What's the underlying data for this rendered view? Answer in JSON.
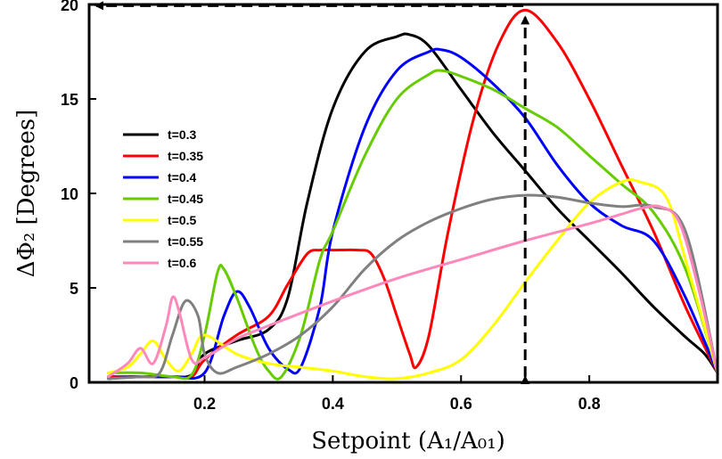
{
  "chart_data": {
    "type": "line",
    "xlabel": "Setpoint (A₁/A₀₁)",
    "ylabel": "ΔΦ₂ [Degrees]",
    "xlim": [
      0.02,
      1.0
    ],
    "ylim": [
      0,
      20
    ],
    "xticks": [
      "0.2",
      "0.4",
      "0.6",
      "0.8"
    ],
    "xtick_values": [
      0.2,
      0.4,
      0.6,
      0.8
    ],
    "yticks": [
      "0",
      "5",
      "10",
      "15",
      "20"
    ],
    "ytick_values": [
      0,
      5,
      10,
      15,
      20
    ],
    "grid": false,
    "legend_position": "left",
    "annotations": [
      {
        "type": "dashed-double-arrow",
        "orientation": "vertical",
        "x": 0.7,
        "from_y": 0,
        "to_y": 19.7
      },
      {
        "type": "dashed-arrow",
        "orientation": "horizontal",
        "y": 19.7,
        "from_x": 0.7,
        "to_x": 0.02
      }
    ],
    "series": [
      {
        "name": "t=0.3",
        "color": "#000000",
        "x": [
          0.05,
          0.1,
          0.15,
          0.18,
          0.2,
          0.25,
          0.3,
          0.33,
          0.36,
          0.4,
          0.45,
          0.5,
          0.52,
          0.55,
          0.6,
          0.65,
          0.7,
          0.75,
          0.8,
          0.85,
          0.9,
          0.95,
          0.98,
          1.0
        ],
        "y": [
          0.3,
          0.3,
          0.3,
          0.4,
          1.5,
          2.2,
          2.8,
          4.5,
          9.5,
          14.5,
          17.5,
          18.3,
          18.4,
          17.8,
          15.5,
          13.2,
          11.2,
          9.2,
          7.5,
          5.8,
          4.0,
          2.4,
          1.5,
          0.5
        ]
      },
      {
        "name": "t=0.35",
        "color": "#ff0000",
        "x": [
          0.05,
          0.1,
          0.15,
          0.18,
          0.2,
          0.25,
          0.3,
          0.33,
          0.36,
          0.38,
          0.4,
          0.44,
          0.46,
          0.48,
          0.5,
          0.52,
          0.53,
          0.55,
          0.58,
          0.62,
          0.66,
          0.7,
          0.75,
          0.8,
          0.85,
          0.9,
          0.95,
          1.0
        ],
        "y": [
          0.3,
          0.3,
          0.3,
          0.3,
          1.2,
          2.5,
          3.5,
          5.2,
          6.8,
          7.0,
          7.0,
          7.0,
          6.8,
          5.5,
          3.5,
          1.5,
          0.8,
          2.5,
          8.0,
          14.0,
          18.0,
          19.7,
          18.0,
          15.0,
          11.5,
          8.0,
          4.0,
          0.5
        ]
      },
      {
        "name": "t=0.4",
        "color": "#0000ff",
        "x": [
          0.05,
          0.1,
          0.15,
          0.2,
          0.23,
          0.25,
          0.27,
          0.3,
          0.33,
          0.35,
          0.38,
          0.4,
          0.45,
          0.5,
          0.55,
          0.57,
          0.6,
          0.65,
          0.7,
          0.75,
          0.8,
          0.85,
          0.9,
          0.95,
          1.0
        ],
        "y": [
          0.2,
          0.3,
          0.3,
          0.5,
          3.5,
          4.8,
          4.0,
          1.8,
          0.7,
          0.8,
          4.0,
          8.0,
          13.5,
          16.5,
          17.5,
          17.6,
          17.2,
          15.8,
          14.0,
          11.5,
          9.5,
          8.3,
          7.5,
          4.5,
          0.5
        ]
      },
      {
        "name": "t=0.45",
        "color": "#66cc00",
        "x": [
          0.05,
          0.1,
          0.15,
          0.18,
          0.2,
          0.22,
          0.23,
          0.25,
          0.28,
          0.3,
          0.32,
          0.35,
          0.38,
          0.4,
          0.45,
          0.5,
          0.55,
          0.57,
          0.6,
          0.65,
          0.7,
          0.75,
          0.8,
          0.85,
          0.9,
          0.95,
          1.0
        ],
        "y": [
          0.5,
          0.5,
          0.3,
          0.4,
          2.5,
          5.8,
          6.0,
          4.5,
          1.8,
          0.6,
          0.3,
          2.5,
          6.5,
          8.0,
          12.0,
          15.0,
          16.3,
          16.5,
          16.2,
          15.5,
          14.5,
          13.5,
          12.0,
          10.5,
          9.0,
          6.0,
          0.5
        ]
      },
      {
        "name": "t=0.5",
        "color": "#ffff00",
        "x": [
          0.05,
          0.08,
          0.1,
          0.12,
          0.14,
          0.16,
          0.18,
          0.2,
          0.25,
          0.3,
          0.35,
          0.4,
          0.45,
          0.5,
          0.55,
          0.6,
          0.65,
          0.7,
          0.75,
          0.8,
          0.85,
          0.88,
          0.92,
          0.95,
          1.0
        ],
        "y": [
          0.5,
          0.8,
          1.5,
          2.2,
          1.2,
          0.6,
          1.5,
          2.5,
          1.5,
          1.0,
          0.8,
          0.6,
          0.3,
          0.2,
          0.5,
          1.2,
          3.0,
          5.3,
          7.5,
          9.5,
          10.6,
          10.6,
          9.8,
          6.5,
          0.5
        ]
      },
      {
        "name": "t=0.55",
        "color": "#808080",
        "x": [
          0.05,
          0.1,
          0.13,
          0.15,
          0.17,
          0.19,
          0.2,
          0.22,
          0.25,
          0.3,
          0.35,
          0.4,
          0.45,
          0.5,
          0.55,
          0.6,
          0.65,
          0.7,
          0.75,
          0.8,
          0.85,
          0.9,
          0.95,
          1.0
        ],
        "y": [
          0.2,
          0.3,
          0.5,
          2.5,
          4.3,
          3.5,
          1.5,
          0.5,
          0.8,
          1.5,
          2.5,
          4.0,
          6.0,
          7.5,
          8.5,
          9.2,
          9.7,
          9.9,
          9.8,
          9.5,
          9.3,
          9.3,
          8.0,
          0.5
        ]
      },
      {
        "name": "t=0.6",
        "color": "#ff88bb",
        "x": [
          0.05,
          0.08,
          0.1,
          0.12,
          0.14,
          0.15,
          0.16,
          0.18,
          0.2,
          0.25,
          0.3,
          0.4,
          0.5,
          0.6,
          0.7,
          0.8,
          0.85,
          0.88,
          0.91,
          0.94,
          0.97,
          1.0
        ],
        "y": [
          0.3,
          1.0,
          1.8,
          1.0,
          3.0,
          4.5,
          3.8,
          1.2,
          1.3,
          2.3,
          3.0,
          4.3,
          5.5,
          6.5,
          7.5,
          8.4,
          8.9,
          9.2,
          9.3,
          8.5,
          5.0,
          0.5
        ]
      }
    ]
  }
}
